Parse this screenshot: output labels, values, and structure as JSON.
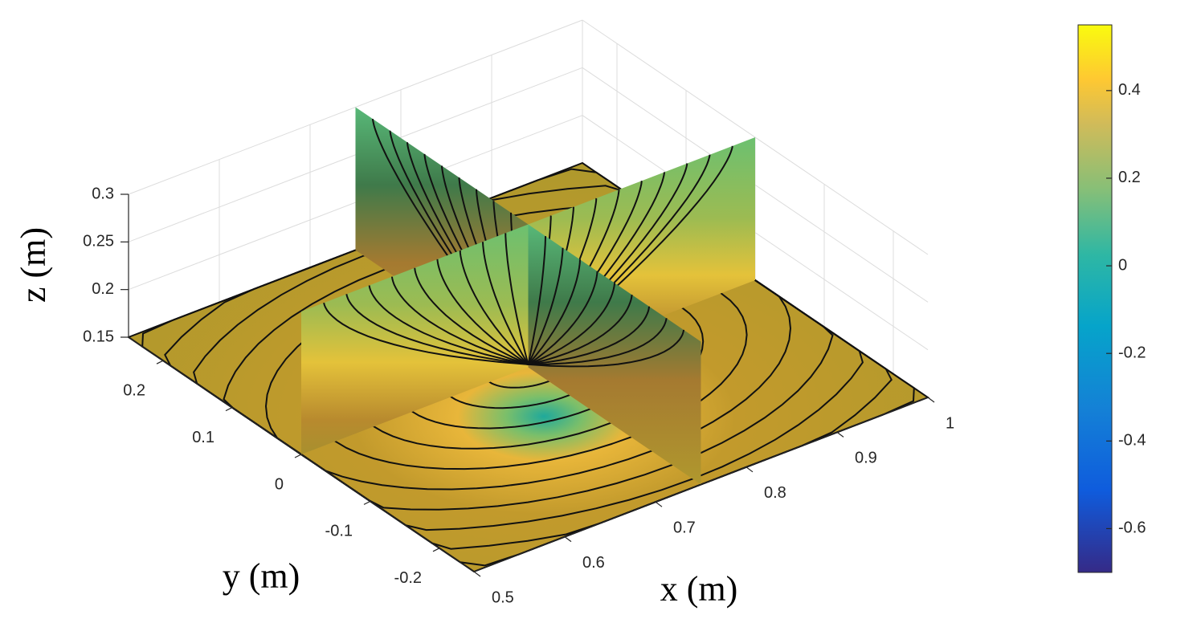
{
  "chart_data": {
    "type": "slice",
    "xlabel": "x (m)",
    "ylabel": "y (m)",
    "zlabel": "z (m)",
    "xlim": [
      0.5,
      1
    ],
    "xticks": [
      0.5,
      0.6,
      0.7,
      0.8,
      0.9,
      1
    ],
    "ylim": [
      -0.25,
      0.25
    ],
    "yticks": [
      -0.2,
      -0.1,
      0,
      0.1,
      0.2
    ],
    "zlim": [
      0.15,
      0.3
    ],
    "zticks": [
      0.15,
      0.2,
      0.25,
      0.3
    ],
    "clim": [
      -0.7,
      0.55
    ],
    "cticks": [
      -0.6,
      -0.4,
      -0.2,
      0,
      0.2,
      0.4
    ],
    "colormap": "parula",
    "grid": true
  }
}
